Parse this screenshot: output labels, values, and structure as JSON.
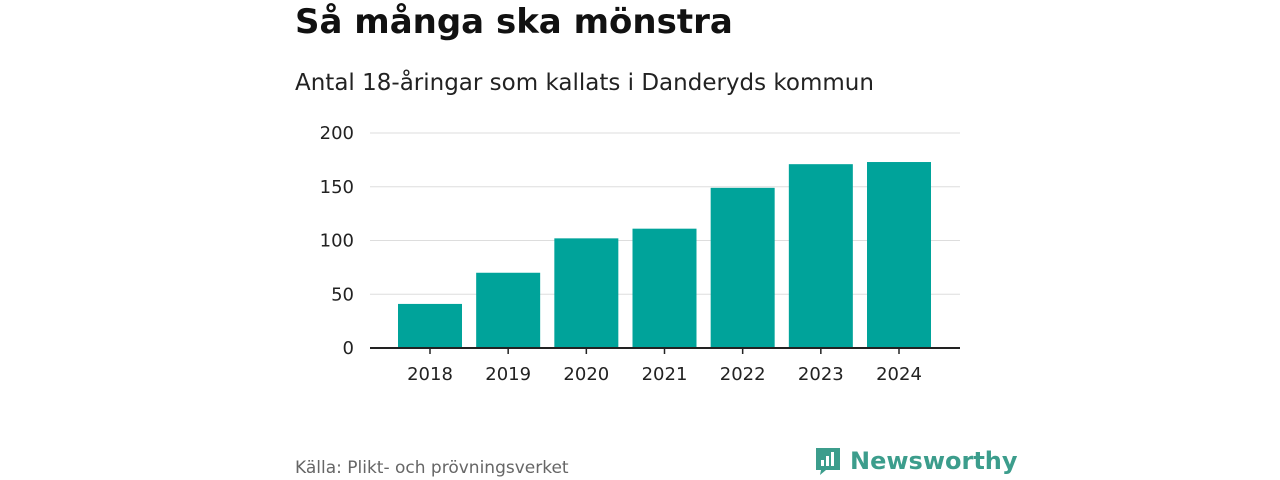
{
  "header": {
    "title": "Så många ska mönstra",
    "subtitle": "Antal 18-åringar som kallats i Danderyds kommun"
  },
  "footer": {
    "source": "Källa: Plikt- och prövningsverket",
    "brand": "Newsworthy",
    "brand_icon": "newsworthy-logo-icon"
  },
  "colors": {
    "bar": "#00a39a",
    "grid": "#dddddd",
    "axis": "#222222",
    "brand": "#3c9d8c"
  },
  "chart_data": {
    "type": "bar",
    "title": "Så många ska mönstra",
    "subtitle": "Antal 18-åringar som kallats i Danderyds kommun",
    "categories": [
      "2018",
      "2019",
      "2020",
      "2021",
      "2022",
      "2023",
      "2024"
    ],
    "values": [
      41,
      70,
      102,
      111,
      149,
      171,
      173
    ],
    "xlabel": "",
    "ylabel": "",
    "ylim": [
      0,
      200
    ],
    "yticks": [
      "0",
      "50",
      "100",
      "150",
      "200"
    ],
    "grid": true,
    "legend": "none"
  }
}
